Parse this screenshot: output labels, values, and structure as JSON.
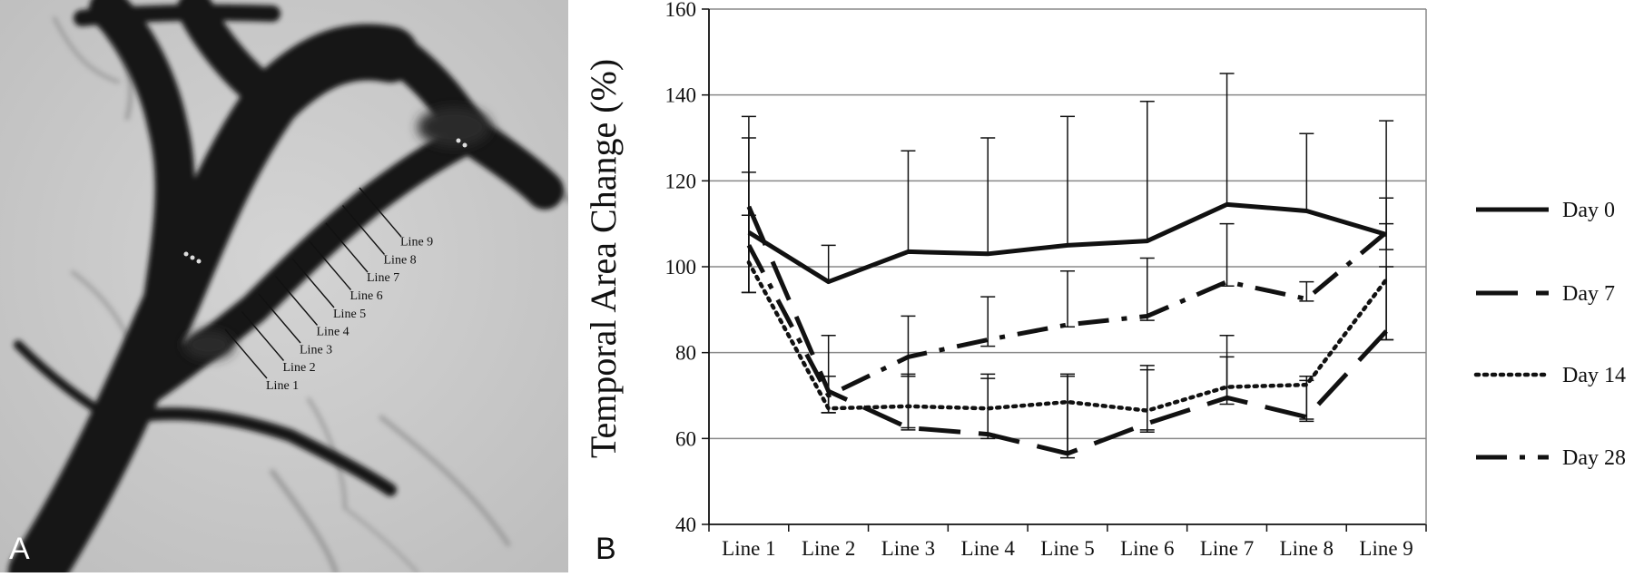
{
  "panel_a": {
    "letter": "A",
    "line_labels": [
      "Line 1",
      "Line 2",
      "Line 3",
      "Line 4",
      "Line 5",
      "Line 6",
      "Line 7",
      "Line 8",
      "Line 9"
    ]
  },
  "panel_b": {
    "letter": "B"
  },
  "chart_data": {
    "type": "line",
    "categories": [
      "Line 1",
      "Line 2",
      "Line 3",
      "Line 4",
      "Line 5",
      "Line 6",
      "Line 7",
      "Line 8",
      "Line 9"
    ],
    "ylabel": "Temporal Area Change (%)",
    "xlabel": "",
    "ylim": [
      40,
      160
    ],
    "yticks": [
      40,
      60,
      80,
      100,
      120,
      140,
      160
    ],
    "grid": true,
    "legend": "right",
    "series": [
      {
        "name": "Day 0",
        "style": "solid",
        "values": [
          108,
          96.5,
          103.5,
          103,
          105,
          106,
          114.5,
          113,
          107.5
        ],
        "upper": [
          135,
          105,
          127,
          130,
          135,
          138.5,
          145,
          131,
          134
        ]
      },
      {
        "name": "Day 7",
        "style": "long-dash",
        "values": [
          114,
          71,
          62.5,
          61,
          56.5,
          63.5,
          69.5,
          65,
          85
        ],
        "upper": [
          122,
          84,
          74.5,
          75,
          75,
          77,
          84,
          73.5,
          110
        ],
        "lower": [
          94,
          66,
          62,
          60,
          55.5,
          61.5,
          68,
          64,
          83
        ]
      },
      {
        "name": "Day 14",
        "style": "dotted",
        "values": [
          101,
          67,
          67.5,
          67,
          68.5,
          66.5,
          72,
          72.5,
          97
        ],
        "upper": [
          112,
          74.5,
          75,
          74,
          74.5,
          76,
          79,
          74.5,
          100
        ],
        "lower": [
          94,
          66,
          62.5,
          61,
          57,
          62,
          69,
          64.5,
          83
        ]
      },
      {
        "name": "Day 28",
        "style": "dash-dot",
        "values": [
          105,
          70,
          79,
          83,
          86.5,
          88.5,
          96.5,
          92.5,
          108
        ],
        "upper": [
          130,
          74.5,
          88.5,
          93,
          99,
          102,
          110,
          96.5,
          116
        ],
        "lower": [
          94,
          66,
          74.5,
          81.5,
          86,
          87.5,
          95.5,
          92,
          104
        ]
      }
    ]
  },
  "colors": {
    "line": "#111111",
    "grid": "#888888",
    "background": "#ffffff"
  }
}
